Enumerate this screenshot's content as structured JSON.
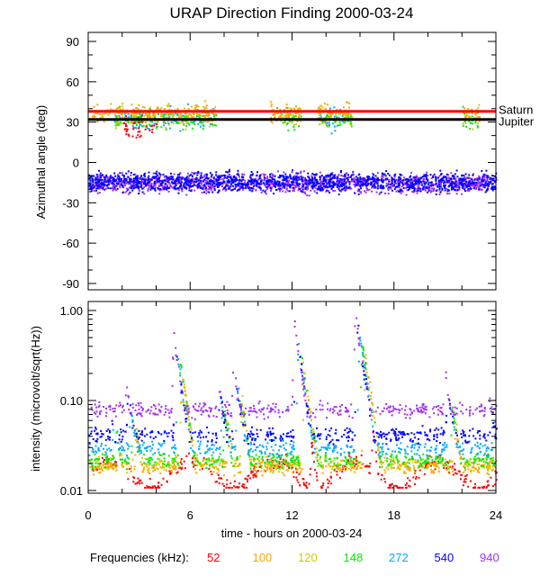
{
  "chart_data": [
    {
      "type": "scatter",
      "panel": "top",
      "title": "URAP Direction Finding  2000-03-24",
      "xlabel": "",
      "ylabel": "Azimuthal angle (deg)",
      "xlim": [
        0,
        24
      ],
      "ylim": [
        -95,
        95
      ],
      "yticks": [
        "90",
        "60",
        "30",
        "0",
        "-30",
        "-60",
        "-90"
      ],
      "ytick_values": [
        90,
        60,
        30,
        0,
        -30,
        -60,
        -90
      ],
      "reference_lines": [
        {
          "label": "Saturn",
          "value": 38,
          "color": "#ff0000"
        },
        {
          "label": "Jupiter",
          "value": 32,
          "color": "#000000"
        }
      ],
      "clusters": [
        {
          "series": "940",
          "center": -15,
          "spread": 5,
          "hours": [
            [
              0,
              24
            ]
          ]
        },
        {
          "series": "540",
          "center": -14,
          "spread": 5,
          "hours": [
            [
              0,
              24
            ]
          ]
        },
        {
          "series": "272",
          "center": 33,
          "spread": 6,
          "hours": [
            [
              1.5,
              7.5
            ],
            [
              13.5,
              15
            ]
          ]
        },
        {
          "series": "148",
          "center": 33,
          "spread": 5,
          "hours": [
            [
              1.5,
              7.5
            ],
            [
              11,
              12.5
            ],
            [
              13.5,
              15.5
            ],
            [
              22,
              23
            ]
          ]
        },
        {
          "series": "120",
          "center": 35,
          "spread": 5,
          "hours": [
            [
              1.5,
              7.5
            ],
            [
              11,
              12.5
            ],
            [
              13.5,
              15.5
            ],
            [
              22,
              23
            ]
          ]
        },
        {
          "series": "100",
          "center": 37,
          "spread": 5,
          "hours": [
            [
              0.2,
              7.5
            ],
            [
              10.5,
              12.5
            ],
            [
              13.5,
              15.5
            ],
            [
              22,
              23
            ]
          ]
        },
        {
          "series": "52",
          "center": 28,
          "spread": 7,
          "hours": [
            [
              2,
              4
            ]
          ]
        }
      ]
    },
    {
      "type": "scatter",
      "panel": "bottom",
      "xlabel": "time - hours on 2000-03-24",
      "ylabel": "intensity (microvolt/sqrt(Hz))",
      "xlim": [
        0,
        24
      ],
      "ylim": [
        0.01,
        1.0
      ],
      "yscale": "log",
      "yticks": [
        "1.00",
        "0.10",
        "0.01"
      ],
      "ytick_values": [
        1.0,
        0.1,
        0.01
      ],
      "xticks": [
        "0",
        "6",
        "12",
        "18",
        "24"
      ],
      "xtick_values": [
        0,
        6,
        12,
        18,
        24
      ],
      "series": [
        {
          "name": "52",
          "color": "#ff0000",
          "baseline": 0.016,
          "delay": 1.0,
          "scale": 0.05
        },
        {
          "name": "100",
          "color": "#ffa500",
          "baseline": 0.019,
          "delay": 0.6,
          "scale": 0.3
        },
        {
          "name": "120",
          "color": "#d4c800",
          "baseline": 0.02,
          "delay": 0.5,
          "scale": 0.4
        },
        {
          "name": "148",
          "color": "#00ee00",
          "baseline": 0.022,
          "delay": 0.4,
          "scale": 0.5
        },
        {
          "name": "272",
          "color": "#00aaff",
          "baseline": 0.03,
          "delay": 0.25,
          "scale": 0.6
        },
        {
          "name": "540",
          "color": "#0000ff",
          "baseline": 0.042,
          "delay": 0.1,
          "scale": 0.8
        },
        {
          "name": "940",
          "color": "#a030f0",
          "baseline": 0.08,
          "delay": 0.0,
          "scale": 1.0
        }
      ],
      "bursts": [
        [
          1.2,
          0.1
        ],
        [
          2.2,
          0.15
        ],
        [
          5.0,
          0.5
        ],
        [
          7.6,
          0.17
        ],
        [
          8.5,
          0.25
        ],
        [
          12.1,
          0.7
        ],
        [
          15.7,
          0.9
        ],
        [
          21.0,
          0.18
        ],
        [
          23.6,
          0.1
        ]
      ]
    }
  ],
  "legend": {
    "label": "Frequencies (kHz):",
    "items": [
      {
        "label": "52",
        "color": "#ff0000"
      },
      {
        "label": "100",
        "color": "#ffa500"
      },
      {
        "label": "120",
        "color": "#d4c800"
      },
      {
        "label": "148",
        "color": "#00ee00"
      },
      {
        "label": "272",
        "color": "#00aaff"
      },
      {
        "label": "540",
        "color": "#0000ff"
      },
      {
        "label": "940",
        "color": "#a030f0"
      }
    ]
  }
}
